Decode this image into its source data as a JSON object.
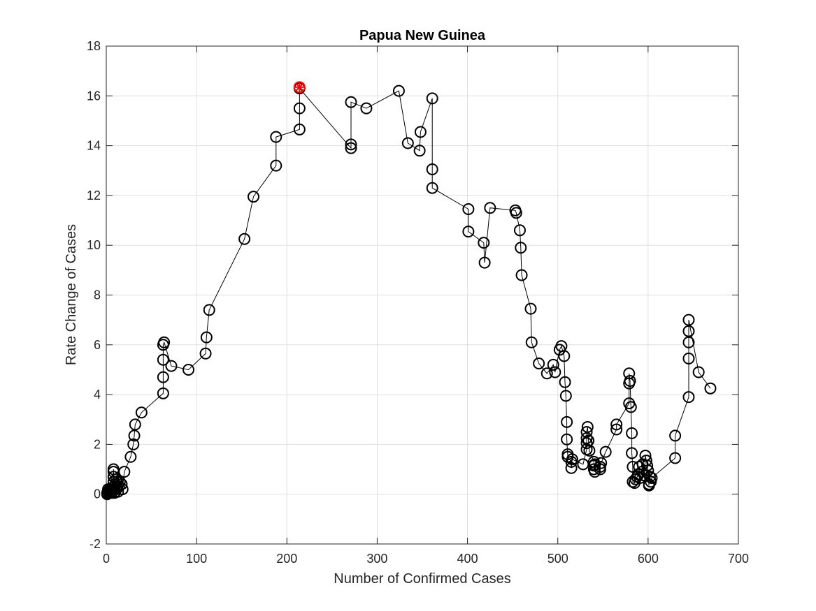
{
  "chart_data": {
    "type": "line",
    "title": "Papua New Guinea",
    "xlabel": "Number of Confirmed Cases",
    "ylabel": "Rate Change of Cases",
    "xlim": [
      0,
      700
    ],
    "ylim": [
      -2,
      18
    ],
    "xticks": [
      0,
      100,
      200,
      300,
      400,
      500,
      600,
      700
    ],
    "yticks": [
      -2,
      0,
      2,
      4,
      6,
      8,
      10,
      12,
      14,
      16,
      18
    ],
    "grid": true,
    "colors": {
      "line": "#000000",
      "marker": "#000000",
      "highlight": "#ff0000"
    },
    "series": [
      {
        "marker": "circle",
        "x": [
          1,
          1,
          2,
          2,
          3,
          3,
          4,
          4,
          5,
          6,
          7,
          8,
          8,
          8,
          8,
          8,
          9,
          9,
          10,
          10,
          11,
          11,
          12,
          13,
          14,
          15,
          17,
          18,
          20,
          27,
          30,
          31,
          32,
          39,
          63,
          63,
          63,
          63,
          64,
          72,
          91,
          110,
          111,
          114,
          153,
          163,
          188,
          188,
          214,
          214,
          214,
          271,
          271,
          271,
          288,
          324,
          334,
          347,
          348,
          361,
          361,
          361,
          401,
          401,
          418,
          419,
          425,
          453,
          454,
          458,
          459,
          460,
          470,
          471,
          479,
          488,
          495,
          497,
          502,
          504,
          507,
          508,
          509,
          510,
          510,
          511,
          511,
          515,
          515,
          516,
          528,
          532,
          532,
          532,
          532,
          533,
          534,
          535,
          540,
          540,
          540,
          541,
          541,
          547,
          547,
          548,
          553,
          565,
          565,
          579,
          579,
          579,
          580,
          581,
          582,
          582,
          583,
          583,
          585,
          586,
          588,
          589,
          590,
          591,
          593,
          594,
          596,
          597,
          598,
          599,
          600,
          601,
          601,
          602,
          603,
          604,
          630,
          630,
          645,
          645,
          645,
          645,
          645,
          656,
          669
        ],
        "y": [
          0.0,
          0.05,
          0.1,
          0.2,
          0.05,
          0.15,
          0.1,
          0.2,
          0.1,
          0.05,
          0.15,
          0.3,
          0.5,
          0.7,
          0.9,
          1.0,
          0.05,
          0.2,
          0.1,
          0.4,
          0.6,
          0.2,
          0.5,
          0.1,
          0.3,
          0.5,
          0.4,
          0.2,
          0.9,
          1.5,
          2.0,
          2.35,
          2.8,
          3.28,
          4.05,
          4.7,
          5.4,
          6.0,
          6.1,
          5.15,
          5.0,
          5.65,
          6.3,
          7.4,
          10.25,
          11.95,
          13.2,
          14.35,
          14.65,
          15.5,
          16.3,
          13.9,
          14.05,
          15.75,
          15.5,
          16.2,
          14.1,
          13.8,
          14.55,
          15.9,
          13.05,
          12.3,
          11.45,
          10.55,
          10.1,
          9.3,
          11.5,
          11.4,
          11.3,
          10.6,
          9.9,
          8.8,
          7.45,
          6.1,
          5.25,
          4.85,
          5.2,
          4.9,
          5.8,
          5.95,
          5.55,
          4.5,
          3.95,
          2.9,
          2.2,
          1.6,
          1.5,
          1.3,
          1.05,
          1.4,
          1.2,
          1.8,
          2.05,
          2.25,
          2.5,
          2.7,
          2.15,
          1.75,
          1.3,
          1.15,
          1.0,
          0.9,
          1.2,
          1.0,
          1.1,
          1.25,
          1.7,
          2.6,
          2.8,
          3.65,
          4.45,
          4.85,
          4.55,
          3.5,
          2.45,
          1.65,
          1.1,
          0.5,
          0.45,
          0.6,
          0.7,
          0.8,
          1.1,
          0.65,
          0.9,
          1.2,
          0.75,
          1.55,
          1.35,
          1.15,
          0.95,
          0.35,
          0.4,
          0.7,
          0.5,
          0.65,
          1.45,
          2.35,
          3.9,
          5.45,
          6.1,
          6.55,
          7.0,
          4.9,
          4.25
        ]
      }
    ],
    "highlight_point": {
      "x": 214,
      "y": 16.35,
      "marker": "asterisk"
    }
  }
}
